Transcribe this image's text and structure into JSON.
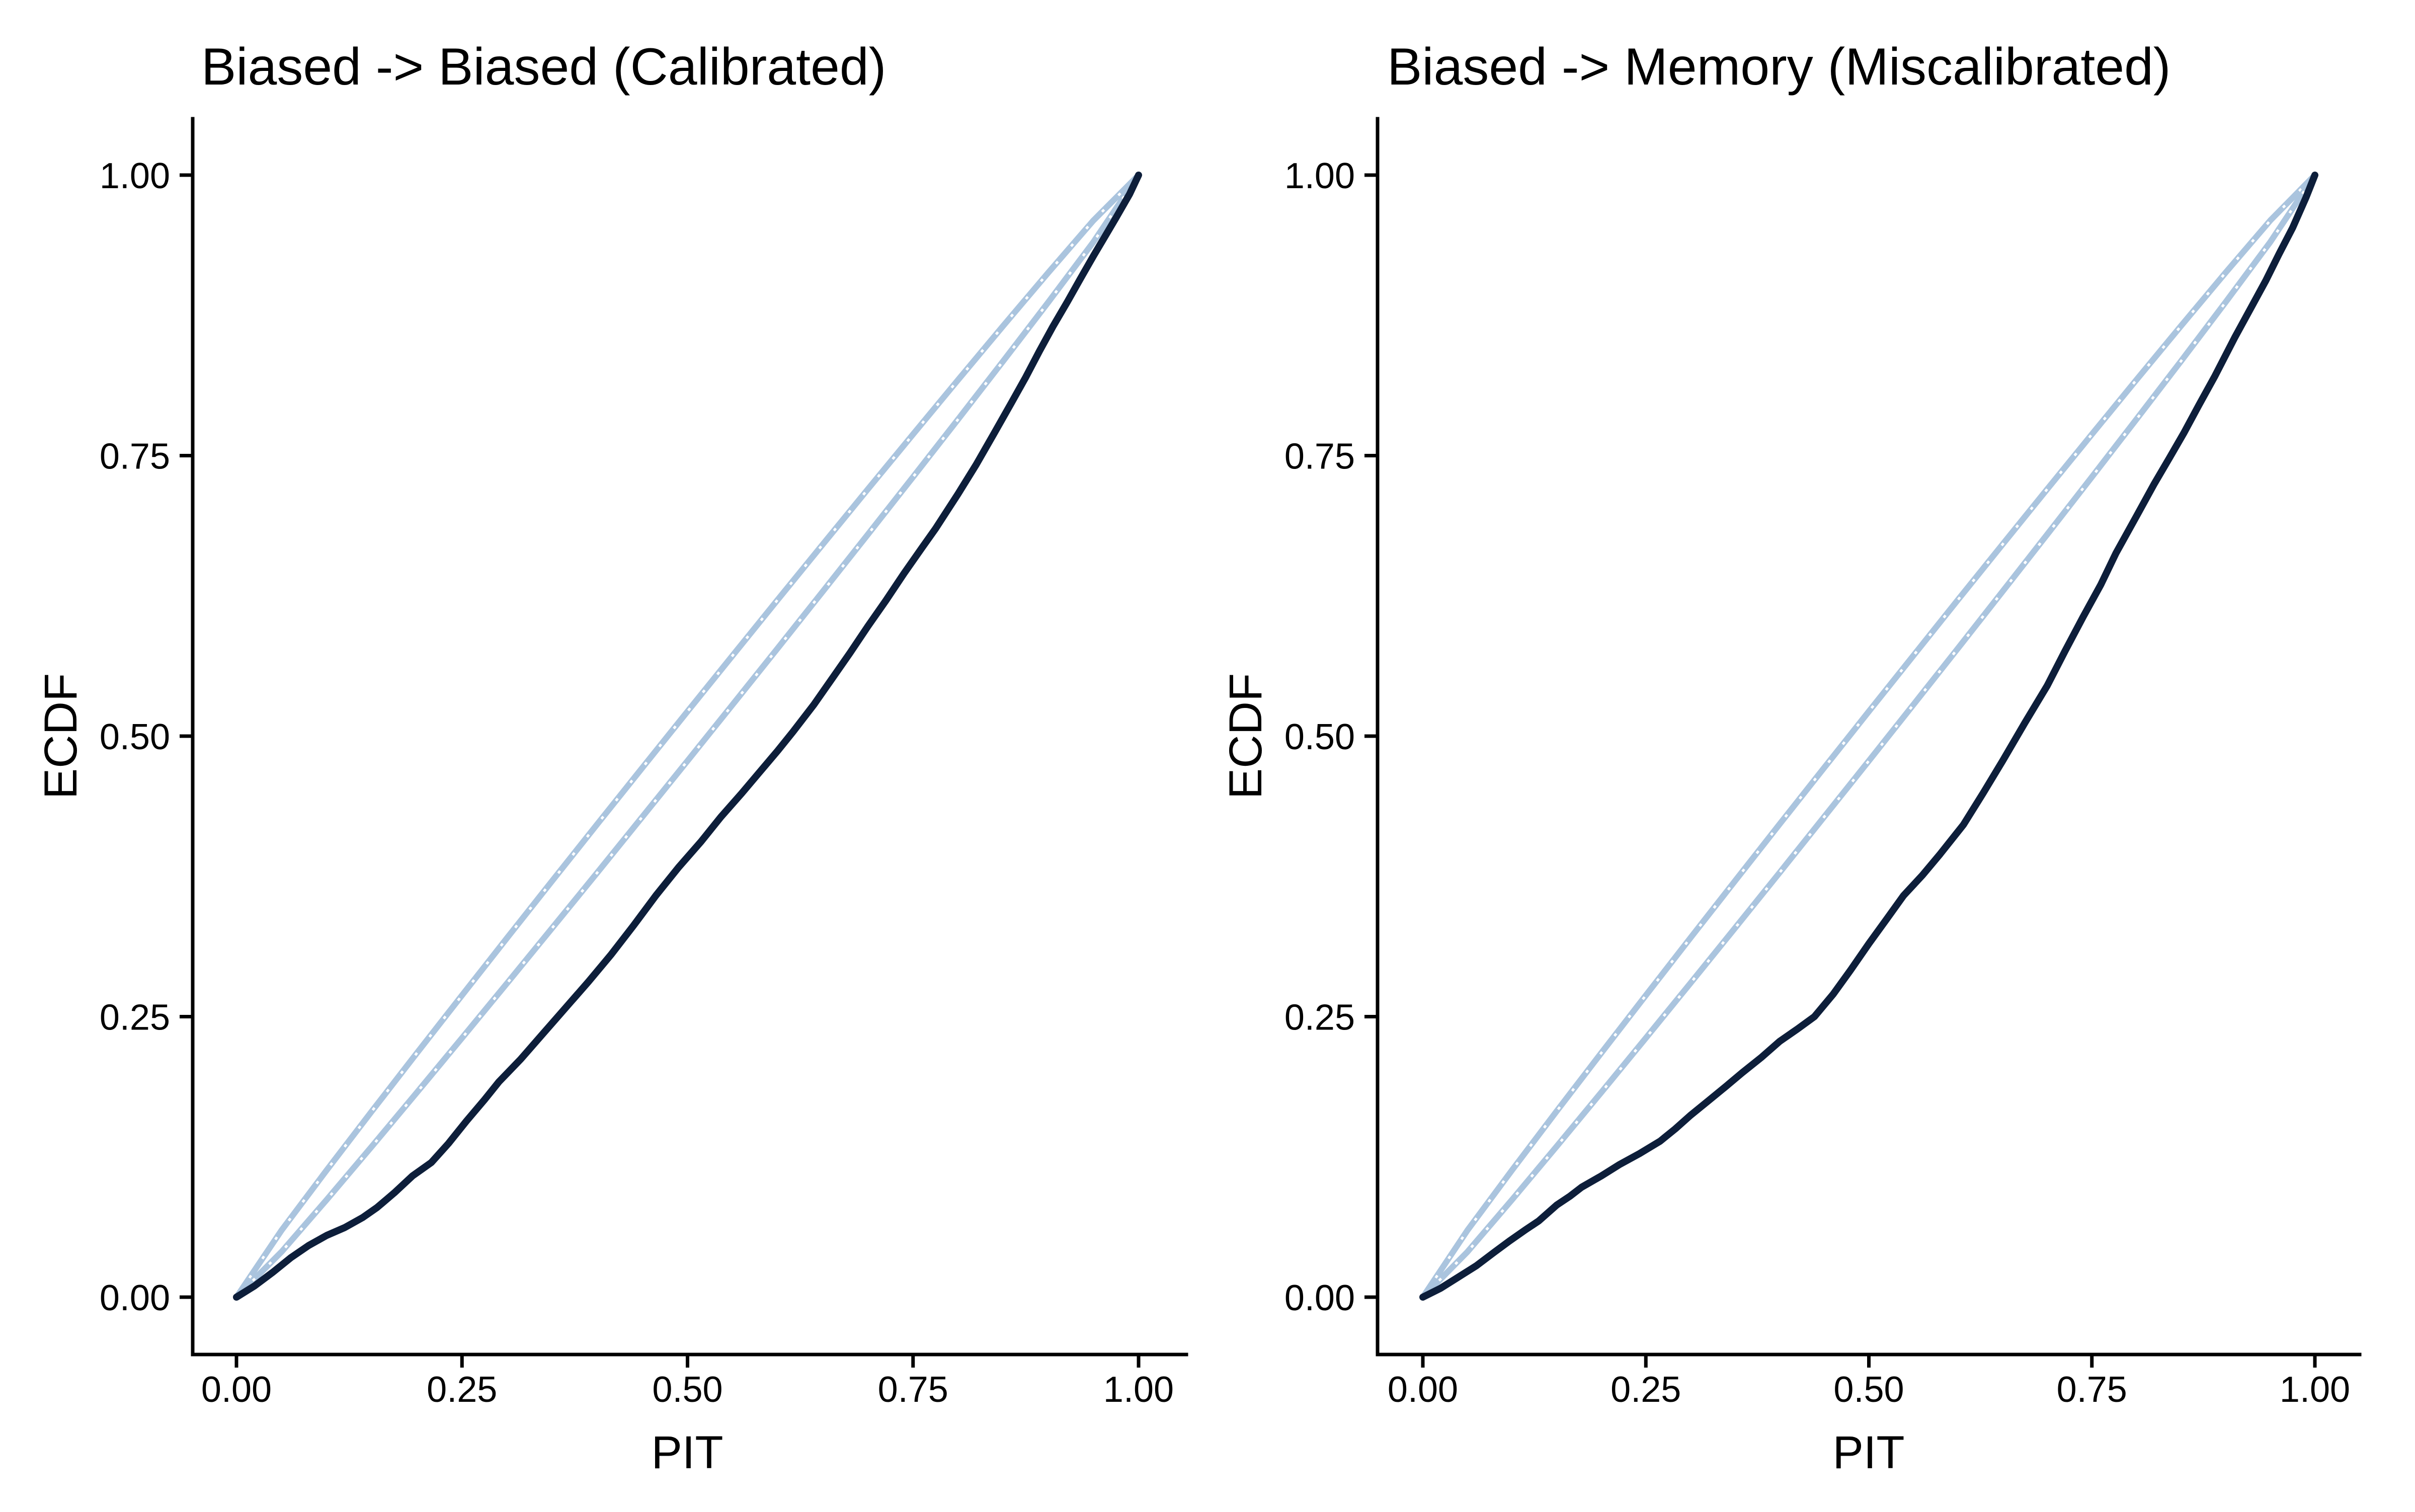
{
  "figure": {
    "background": "#ffffff",
    "text_color": "#000000"
  },
  "colors": {
    "ecdf_line": "#0d1e3a",
    "band_line": "#aac4de",
    "band_gap_dots": "#ffffff",
    "axis": "#000000"
  },
  "chart_data": [
    {
      "type": "line",
      "title": "Biased -> Biased (Calibrated)",
      "xlabel": "PIT",
      "ylabel": "ECDF",
      "xlim": [
        0,
        1
      ],
      "ylim": [
        0,
        1
      ],
      "expansion": 0.05,
      "grid": "off",
      "legend": "none",
      "x_ticks": [
        {
          "value": 0.0,
          "label": "0.00"
        },
        {
          "value": 0.25,
          "label": "0.25"
        },
        {
          "value": 0.5,
          "label": "0.50"
        },
        {
          "value": 0.75,
          "label": "0.75"
        },
        {
          "value": 1.0,
          "label": "1.00"
        }
      ],
      "y_ticks": [
        {
          "value": 0.0,
          "label": "0.00"
        },
        {
          "value": 0.25,
          "label": "0.25"
        },
        {
          "value": 0.5,
          "label": "0.50"
        },
        {
          "value": 0.75,
          "label": "0.75"
        },
        {
          "value": 1.0,
          "label": "1.00"
        }
      ],
      "series": [
        {
          "name": "ecdf",
          "role": "ecdf_curve",
          "points": [
            [
              0,
              0
            ],
            [
              0.02,
              0.01
            ],
            [
              0.04,
              0.022
            ],
            [
              0.06,
              0.035
            ],
            [
              0.08,
              0.046
            ],
            [
              0.1,
              0.055
            ],
            [
              0.12,
              0.062
            ],
            [
              0.14,
              0.071
            ],
            [
              0.156,
              0.08
            ],
            [
              0.175,
              0.093
            ],
            [
              0.195,
              0.108
            ],
            [
              0.216,
              0.12
            ],
            [
              0.235,
              0.137
            ],
            [
              0.255,
              0.157
            ],
            [
              0.275,
              0.176
            ],
            [
              0.291,
              0.192
            ],
            [
              0.315,
              0.212
            ],
            [
              0.34,
              0.235
            ],
            [
              0.365,
              0.258
            ],
            [
              0.39,
              0.281
            ],
            [
              0.415,
              0.305
            ],
            [
              0.44,
              0.331
            ],
            [
              0.465,
              0.358
            ],
            [
              0.49,
              0.383
            ],
            [
              0.515,
              0.406
            ],
            [
              0.537,
              0.428
            ],
            [
              0.56,
              0.449
            ],
            [
              0.58,
              0.468
            ],
            [
              0.6,
              0.487
            ],
            [
              0.617,
              0.504
            ],
            [
              0.64,
              0.528
            ],
            [
              0.66,
              0.551
            ],
            [
              0.68,
              0.574
            ],
            [
              0.7,
              0.598
            ],
            [
              0.72,
              0.621
            ],
            [
              0.74,
              0.645
            ],
            [
              0.76,
              0.668
            ],
            [
              0.775,
              0.685
            ],
            [
              0.8,
              0.716
            ],
            [
              0.82,
              0.742
            ],
            [
              0.84,
              0.77
            ],
            [
              0.859,
              0.797
            ],
            [
              0.875,
              0.82
            ],
            [
              0.89,
              0.843
            ],
            [
              0.905,
              0.865
            ],
            [
              0.921,
              0.887
            ],
            [
              0.935,
              0.907
            ],
            [
              0.95,
              0.928
            ],
            [
              0.9625,
              0.945
            ],
            [
              0.975,
              0.962
            ],
            [
              0.99,
              0.983
            ],
            [
              1,
              1
            ]
          ]
        },
        {
          "name": "ci_upper",
          "role": "confidence_band_upper",
          "points": [
            [
              0,
              0
            ],
            [
              0.05,
              0.0596
            ],
            [
              0.1,
              0.1132
            ],
            [
              0.15,
              0.1657
            ],
            [
              0.2,
              0.2176
            ],
            [
              0.25,
              0.269
            ],
            [
              0.3,
              0.3202
            ],
            [
              0.35,
              0.371
            ],
            [
              0.4,
              0.4216
            ],
            [
              0.45,
              0.4719
            ],
            [
              0.5,
              0.522
            ],
            [
              0.55,
              0.5719
            ],
            [
              0.6,
              0.6216
            ],
            [
              0.65,
              0.671
            ],
            [
              0.7,
              0.7202
            ],
            [
              0.75,
              0.769
            ],
            [
              0.8,
              0.8176
            ],
            [
              0.85,
              0.8657
            ],
            [
              0.9,
              0.9132
            ],
            [
              0.95,
              0.9596
            ],
            [
              1,
              1
            ]
          ]
        },
        {
          "name": "ci_lower",
          "role": "confidence_band_lower",
          "points": [
            [
              0,
              0
            ],
            [
              0.05,
              0.0404
            ],
            [
              0.1,
              0.0868
            ],
            [
              0.15,
              0.1343
            ],
            [
              0.2,
              0.1824
            ],
            [
              0.25,
              0.231
            ],
            [
              0.3,
              0.2798
            ],
            [
              0.35,
              0.329
            ],
            [
              0.4,
              0.3784
            ],
            [
              0.45,
              0.4281
            ],
            [
              0.5,
              0.478
            ],
            [
              0.55,
              0.5281
            ],
            [
              0.6,
              0.5784
            ],
            [
              0.65,
              0.629
            ],
            [
              0.7,
              0.6798
            ],
            [
              0.75,
              0.731
            ],
            [
              0.8,
              0.7824
            ],
            [
              0.85,
              0.8343
            ],
            [
              0.9,
              0.8868
            ],
            [
              0.95,
              0.9404
            ],
            [
              1,
              1
            ]
          ]
        }
      ]
    },
    {
      "type": "line",
      "title": "Biased -> Memory (Miscalibrated)",
      "xlabel": "PIT",
      "ylabel": "ECDF",
      "xlim": [
        0,
        1
      ],
      "ylim": [
        0,
        1
      ],
      "expansion": 0.05,
      "grid": "off",
      "legend": "none",
      "x_ticks": [
        {
          "value": 0.0,
          "label": "0.00"
        },
        {
          "value": 0.25,
          "label": "0.25"
        },
        {
          "value": 0.5,
          "label": "0.50"
        },
        {
          "value": 0.75,
          "label": "0.75"
        },
        {
          "value": 1.0,
          "label": "1.00"
        }
      ],
      "y_ticks": [
        {
          "value": 0.0,
          "label": "0.00"
        },
        {
          "value": 0.25,
          "label": "0.25"
        },
        {
          "value": 0.5,
          "label": "0.50"
        },
        {
          "value": 0.75,
          "label": "0.75"
        },
        {
          "value": 1.0,
          "label": "1.00"
        }
      ],
      "series": [
        {
          "name": "ecdf",
          "role": "ecdf_curve",
          "points": [
            [
              0,
              0
            ],
            [
              0.02,
              0.008
            ],
            [
              0.04,
              0.018
            ],
            [
              0.06,
              0.028
            ],
            [
              0.08,
              0.04
            ],
            [
              0.097,
              0.05
            ],
            [
              0.115,
              0.06
            ],
            [
              0.13,
              0.068
            ],
            [
              0.15,
              0.082
            ],
            [
              0.165,
              0.09
            ],
            [
              0.178,
              0.098
            ],
            [
              0.2,
              0.108
            ],
            [
              0.22,
              0.118
            ],
            [
              0.243,
              0.128
            ],
            [
              0.266,
              0.139
            ],
            [
              0.283,
              0.15
            ],
            [
              0.3,
              0.162
            ],
            [
              0.32,
              0.175
            ],
            [
              0.34,
              0.188
            ],
            [
              0.358,
              0.2
            ],
            [
              0.38,
              0.214
            ],
            [
              0.4,
              0.228
            ],
            [
              0.42,
              0.239
            ],
            [
              0.439,
              0.25
            ],
            [
              0.46,
              0.27
            ],
            [
              0.48,
              0.292
            ],
            [
              0.5,
              0.315
            ],
            [
              0.52,
              0.337
            ],
            [
              0.539,
              0.358
            ],
            [
              0.56,
              0.376
            ],
            [
              0.58,
              0.395
            ],
            [
              0.606,
              0.421
            ],
            [
              0.628,
              0.449
            ],
            [
              0.65,
              0.478
            ],
            [
              0.675,
              0.512
            ],
            [
              0.7,
              0.545
            ],
            [
              0.72,
              0.576
            ],
            [
              0.74,
              0.606
            ],
            [
              0.76,
              0.635
            ],
            [
              0.777,
              0.663
            ],
            [
              0.8,
              0.696
            ],
            [
              0.82,
              0.725
            ],
            [
              0.837,
              0.748
            ],
            [
              0.853,
              0.77
            ],
            [
              0.87,
              0.795
            ],
            [
              0.888,
              0.821
            ],
            [
              0.91,
              0.855
            ],
            [
              0.932,
              0.887
            ],
            [
              0.945,
              0.906
            ],
            [
              0.96,
              0.93
            ],
            [
              0.975,
              0.953
            ],
            [
              0.99,
              0.98
            ],
            [
              1,
              1
            ]
          ]
        },
        {
          "name": "ci_upper",
          "role": "confidence_band_upper",
          "points": [
            [
              0,
              0
            ],
            [
              0.05,
              0.0596
            ],
            [
              0.1,
              0.1132
            ],
            [
              0.15,
              0.1657
            ],
            [
              0.2,
              0.2176
            ],
            [
              0.25,
              0.269
            ],
            [
              0.3,
              0.3202
            ],
            [
              0.35,
              0.371
            ],
            [
              0.4,
              0.4216
            ],
            [
              0.45,
              0.4719
            ],
            [
              0.5,
              0.522
            ],
            [
              0.55,
              0.5719
            ],
            [
              0.6,
              0.6216
            ],
            [
              0.65,
              0.671
            ],
            [
              0.7,
              0.7202
            ],
            [
              0.75,
              0.769
            ],
            [
              0.8,
              0.8176
            ],
            [
              0.85,
              0.8657
            ],
            [
              0.9,
              0.9132
            ],
            [
              0.95,
              0.9596
            ],
            [
              1,
              1
            ]
          ]
        },
        {
          "name": "ci_lower",
          "role": "confidence_band_lower",
          "points": [
            [
              0,
              0
            ],
            [
              0.05,
              0.0404
            ],
            [
              0.1,
              0.0868
            ],
            [
              0.15,
              0.1343
            ],
            [
              0.2,
              0.1824
            ],
            [
              0.25,
              0.231
            ],
            [
              0.3,
              0.2798
            ],
            [
              0.35,
              0.329
            ],
            [
              0.4,
              0.3784
            ],
            [
              0.45,
              0.4281
            ],
            [
              0.5,
              0.478
            ],
            [
              0.55,
              0.5281
            ],
            [
              0.6,
              0.5784
            ],
            [
              0.65,
              0.629
            ],
            [
              0.7,
              0.6798
            ],
            [
              0.75,
              0.731
            ],
            [
              0.8,
              0.7824
            ],
            [
              0.85,
              0.8343
            ],
            [
              0.9,
              0.8868
            ],
            [
              0.95,
              0.9404
            ],
            [
              1,
              1
            ]
          ]
        }
      ]
    }
  ]
}
